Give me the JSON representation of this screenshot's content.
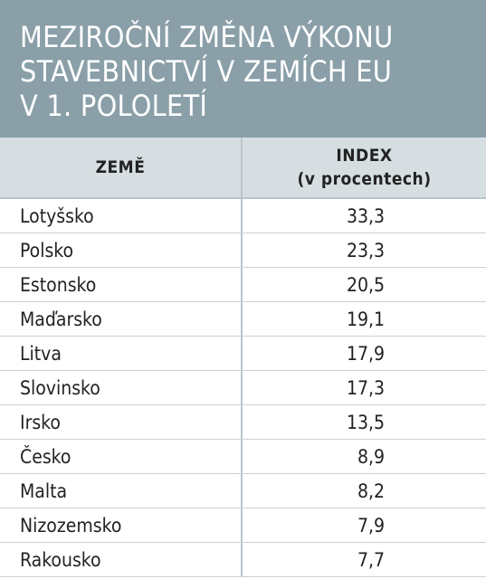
{
  "title_lines": [
    "MEZIROČNÍ ZMĚNA VÝKONU",
    "STAVEBNICTVÍ V ZEMÍCH EU",
    "V 1. POLOLETÍ"
  ],
  "columns": {
    "country": "ZEMĚ",
    "index_line1": "INDEX",
    "index_line2": "(v procentech)"
  },
  "colors": {
    "title_bg": "#8a9fa8",
    "header_bg": "#d6dee1",
    "grid": "#b8c5ca"
  },
  "chart_data": {
    "type": "table",
    "title": "MEZIROČNÍ ZMĚNA VÝKONU STAVEBNICTVÍ V ZEMÍCH EU V 1. POLOLETÍ",
    "columns": [
      "ZEMĚ",
      "INDEX (v procentech)"
    ],
    "rows": [
      {
        "country": "Lotyšsko",
        "value": "33,3"
      },
      {
        "country": "Polsko",
        "value": "23,3"
      },
      {
        "country": "Estonsko",
        "value": "20,5"
      },
      {
        "country": "Maďarsko",
        "value": "19,1"
      },
      {
        "country": "Litva",
        "value": "17,9"
      },
      {
        "country": "Slovinsko",
        "value": "17,3"
      },
      {
        "country": "Irsko",
        "value": "13,5"
      },
      {
        "country": "Česko",
        "value": "8,9"
      },
      {
        "country": "Malta",
        "value": "8,2"
      },
      {
        "country": "Nizozemsko",
        "value": "7,9"
      },
      {
        "country": "Rakousko",
        "value": "7,7"
      }
    ]
  }
}
